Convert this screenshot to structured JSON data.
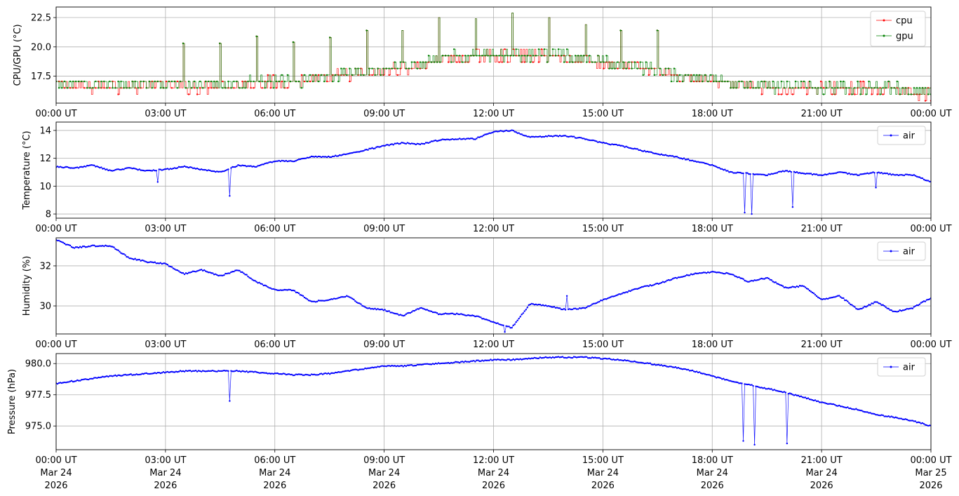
{
  "figure": {
    "x_tick_labels": [
      "00:00 UT",
      "03:00 UT",
      "06:00 UT",
      "09:00 UT",
      "12:00 UT",
      "15:00 UT",
      "18:00 UT",
      "21:00 UT",
      "00:00 UT"
    ],
    "bottom_date_labels": [
      [
        "Mar 24",
        "2026"
      ],
      [
        "Mar 24",
        "2026"
      ],
      [
        "Mar 24",
        "2026"
      ],
      [
        "Mar 24",
        "2026"
      ],
      [
        "Mar 24",
        "2026"
      ],
      [
        "Mar 24",
        "2026"
      ],
      [
        "Mar 24",
        "2026"
      ],
      [
        "Mar 24",
        "2026"
      ],
      [
        "Mar 25",
        "2026"
      ]
    ],
    "grid": true
  },
  "chart_data": [
    {
      "type": "line",
      "panel": "cpu-gpu",
      "xlabel": "",
      "ylabel": "CPU/GPU (°C)",
      "xlim": [
        "2026-03-24 00:00",
        "2026-03-25 00:00"
      ],
      "ylim": [
        15.2,
        23.4
      ],
      "yticks": [
        17.5,
        20.0,
        22.5
      ],
      "ytick_labels": [
        "17.5",
        "20.0",
        "22.5"
      ],
      "legend": "top-right",
      "series": [
        {
          "name": "cpu",
          "color": "#ff0000",
          "x_hours": [
            0,
            0.5,
            1,
            1.5,
            2,
            2.5,
            3,
            3.5,
            4,
            4.5,
            5,
            5.5,
            6,
            6.5,
            7,
            7.5,
            8,
            8.5,
            9,
            9.5,
            10,
            10.5,
            11,
            11.5,
            12,
            12.5,
            13,
            13.5,
            14,
            14.5,
            15,
            15.5,
            16,
            16.5,
            17,
            17.5,
            18,
            18.5,
            19,
            19.5,
            20,
            20.5,
            21,
            21.5,
            22,
            22.5,
            23,
            23.5,
            24
          ],
          "y": [
            16.8,
            16.6,
            16.5,
            16.7,
            16.6,
            16.7,
            16.7,
            16.6,
            16.5,
            16.7,
            16.6,
            17.0,
            17.0,
            17.0,
            17.1,
            17.4,
            17.6,
            17.6,
            18.0,
            18.2,
            18.4,
            18.9,
            19.0,
            19.2,
            19.3,
            19.3,
            19.2,
            19.2,
            19.1,
            19.0,
            18.6,
            18.4,
            18.2,
            18.0,
            17.5,
            17.2,
            17.1,
            16.8,
            16.6,
            16.5,
            16.4,
            16.5,
            16.4,
            16.5,
            16.5,
            16.3,
            16.4,
            16.1,
            16.0
          ]
        },
        {
          "name": "gpu",
          "color": "#008000",
          "x_hours": [
            0,
            0.5,
            1,
            1.5,
            2,
            2.5,
            3,
            3.5,
            4,
            4.5,
            5,
            5.5,
            6,
            6.5,
            7,
            7.5,
            8,
            8.5,
            9,
            9.5,
            10,
            10.5,
            11,
            11.5,
            12,
            12.5,
            13,
            13.5,
            14,
            14.5,
            15,
            15.5,
            16,
            16.5,
            17,
            17.5,
            18,
            18.5,
            19,
            19.5,
            20,
            20.5,
            21,
            21.5,
            22,
            22.5,
            23,
            23.5,
            24
          ],
          "y": [
            16.9,
            16.8,
            16.7,
            16.9,
            16.8,
            16.9,
            16.8,
            16.8,
            16.7,
            16.8,
            16.8,
            17.1,
            17.1,
            17.1,
            17.2,
            17.5,
            17.7,
            17.8,
            18.1,
            18.3,
            18.5,
            19.0,
            19.2,
            19.3,
            19.4,
            19.4,
            19.3,
            19.3,
            19.2,
            19.1,
            18.7,
            18.5,
            18.3,
            18.1,
            17.6,
            17.3,
            17.2,
            16.9,
            16.8,
            16.6,
            16.6,
            16.6,
            16.5,
            16.6,
            16.6,
            16.5,
            16.5,
            16.3,
            16.1
          ]
        }
      ],
      "spikes": [
        {
          "x_hour": 3.5,
          "y": 20.3
        },
        {
          "x_hour": 4.5,
          "y": 20.3
        },
        {
          "x_hour": 5.5,
          "y": 20.9
        },
        {
          "x_hour": 6.5,
          "y": 20.4
        },
        {
          "x_hour": 7.5,
          "y": 20.8
        },
        {
          "x_hour": 8.5,
          "y": 21.4
        },
        {
          "x_hour": 9.5,
          "y": 21.4
        },
        {
          "x_hour": 10.5,
          "y": 22.5
        },
        {
          "x_hour": 11.5,
          "y": 22.4
        },
        {
          "x_hour": 12.5,
          "y": 22.9
        },
        {
          "x_hour": 13.5,
          "y": 22.5
        },
        {
          "x_hour": 14.5,
          "y": 21.9
        },
        {
          "x_hour": 15.5,
          "y": 21.4
        },
        {
          "x_hour": 16.5,
          "y": 21.4
        }
      ]
    },
    {
      "type": "line",
      "panel": "temperature",
      "xlabel": "",
      "ylabel": "Temperature (°C)",
      "xlim": [
        "2026-03-24 00:00",
        "2026-03-25 00:00"
      ],
      "ylim": [
        7.7,
        14.6
      ],
      "yticks": [
        8,
        10,
        12,
        14
      ],
      "ytick_labels": [
        "8",
        "10",
        "12",
        "14"
      ],
      "legend": "top-right",
      "series": [
        {
          "name": "air",
          "color": "#0000ff",
          "x_hours": [
            0,
            0.5,
            1,
            1.5,
            2,
            2.5,
            3,
            3.5,
            4,
            4.5,
            5,
            5.5,
            6,
            6.5,
            7,
            7.5,
            8,
            8.5,
            9,
            9.5,
            10,
            10.5,
            11,
            11.5,
            12,
            12.5,
            13,
            13.5,
            14,
            14.5,
            15,
            15.5,
            16,
            16.5,
            17,
            17.5,
            18,
            18.5,
            19,
            19.5,
            20,
            20.5,
            21,
            21.5,
            22,
            22.5,
            23,
            23.5,
            24
          ],
          "y": [
            11.4,
            11.3,
            11.5,
            11.1,
            11.3,
            11.1,
            11.2,
            11.4,
            11.2,
            11.0,
            11.5,
            11.4,
            11.8,
            11.8,
            12.1,
            12.1,
            12.3,
            12.6,
            12.9,
            13.1,
            13.0,
            13.3,
            13.4,
            13.4,
            13.9,
            14.0,
            13.5,
            13.6,
            13.6,
            13.4,
            13.1,
            12.9,
            12.6,
            12.3,
            12.1,
            11.8,
            11.5,
            11.0,
            10.9,
            10.8,
            11.1,
            10.9,
            10.8,
            11.0,
            10.8,
            11.0,
            10.8,
            10.8,
            10.3
          ]
        }
      ],
      "spikes": [
        {
          "x_hour": 4.75,
          "y": 9.3
        },
        {
          "x_hour": 18.9,
          "y": 8.1
        },
        {
          "x_hour": 19.1,
          "y": 8.0
        },
        {
          "x_hour": 20.2,
          "y": 8.5
        },
        {
          "x_hour": 2.8,
          "y": 10.3
        },
        {
          "x_hour": 22.5,
          "y": 9.9
        }
      ]
    },
    {
      "type": "line",
      "panel": "humidity",
      "xlabel": "",
      "ylabel": "Humidity (%)",
      "xlim": [
        "2026-03-24 00:00",
        "2026-03-25 00:00"
      ],
      "ylim": [
        28.6,
        33.4
      ],
      "yticks": [
        30,
        32
      ],
      "ytick_labels": [
        "30",
        "32"
      ],
      "legend": "top-right",
      "series": [
        {
          "name": "air",
          "color": "#0000ff",
          "x_hours": [
            0,
            0.5,
            1,
            1.5,
            2,
            2.5,
            3,
            3.5,
            4,
            4.5,
            5,
            5.5,
            6,
            6.5,
            7,
            7.5,
            8,
            8.5,
            9,
            9.5,
            10,
            10.5,
            11,
            11.5,
            12,
            12.5,
            13,
            13.5,
            14,
            14.5,
            15,
            15.5,
            16,
            16.5,
            17,
            17.5,
            18,
            18.5,
            19,
            19.5,
            20,
            20.5,
            21,
            21.5,
            22,
            22.5,
            23,
            23.5,
            24
          ],
          "y": [
            33.3,
            32.9,
            33.0,
            33.0,
            32.4,
            32.2,
            32.1,
            31.6,
            31.8,
            31.5,
            31.8,
            31.2,
            30.8,
            30.8,
            30.2,
            30.3,
            30.5,
            29.9,
            29.8,
            29.5,
            29.9,
            29.6,
            29.6,
            29.5,
            29.2,
            28.9,
            30.1,
            30.0,
            29.8,
            29.9,
            30.3,
            30.6,
            30.9,
            31.1,
            31.4,
            31.6,
            31.7,
            31.6,
            31.2,
            31.4,
            30.9,
            31.0,
            30.3,
            30.5,
            29.8,
            30.2,
            29.7,
            29.9,
            30.4
          ]
        }
      ],
      "spikes": [
        {
          "x_hour": 12.3,
          "y": 28.7
        },
        {
          "x_hour": 14.0,
          "y": 30.5
        }
      ]
    },
    {
      "type": "line",
      "panel": "pressure",
      "xlabel": "",
      "ylabel": "Pressure (hPa)",
      "xlim": [
        "2026-03-24 00:00",
        "2026-03-25 00:00"
      ],
      "ylim": [
        973.1,
        980.8
      ],
      "yticks": [
        975.0,
        977.5,
        980.0
      ],
      "ytick_labels": [
        "975.0",
        "977.5",
        "980.0"
      ],
      "legend": "top-right",
      "series": [
        {
          "name": "air",
          "color": "#0000ff",
          "x_hours": [
            0,
            0.5,
            1,
            1.5,
            2,
            2.5,
            3,
            3.5,
            4,
            4.5,
            5,
            5.5,
            6,
            6.5,
            7,
            7.5,
            8,
            8.5,
            9,
            9.5,
            10,
            10.5,
            11,
            11.5,
            12,
            12.5,
            13,
            13.5,
            14,
            14.5,
            15,
            15.5,
            16,
            16.5,
            17,
            17.5,
            18,
            18.5,
            19,
            19.5,
            20,
            20.5,
            21,
            21.5,
            22,
            22.5,
            23,
            23.5,
            24
          ],
          "y": [
            978.4,
            978.6,
            978.8,
            979.0,
            979.1,
            979.2,
            979.3,
            979.4,
            979.4,
            979.4,
            979.4,
            979.3,
            979.2,
            979.1,
            979.1,
            979.2,
            979.4,
            979.6,
            979.8,
            979.8,
            979.9,
            980.0,
            980.1,
            980.2,
            980.3,
            980.3,
            980.4,
            980.5,
            980.5,
            980.5,
            980.4,
            980.3,
            980.1,
            979.9,
            979.7,
            979.4,
            979.0,
            978.6,
            978.3,
            978.0,
            977.7,
            977.3,
            976.9,
            976.6,
            976.3,
            975.9,
            975.7,
            975.4,
            975.0
          ]
        }
      ],
      "spikes": [
        {
          "x_hour": 4.75,
          "y": 977.0
        },
        {
          "x_hour": 18.85,
          "y": 973.8
        },
        {
          "x_hour": 19.15,
          "y": 973.5
        },
        {
          "x_hour": 20.05,
          "y": 973.6
        },
        {
          "x_hour": 22.5,
          "y": 975.9
        }
      ]
    }
  ]
}
